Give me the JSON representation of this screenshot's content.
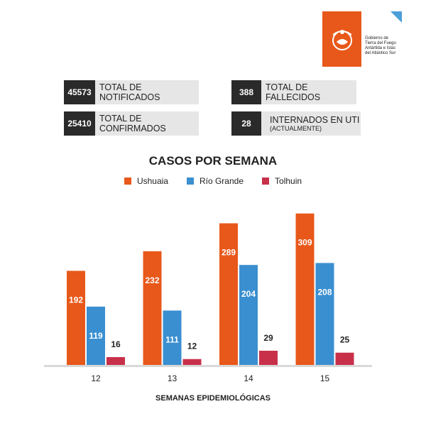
{
  "header": {
    "logo_lines": [
      "Gobierno de",
      "Tierra del Fuego",
      "Antártida e Islas",
      "del Atlántico Sur"
    ]
  },
  "stats": [
    {
      "value": "45573",
      "label": "TOTAL DE NOTIFICADOS",
      "sub": ""
    },
    {
      "value": "388",
      "label": "TOTAL DE FALLECIDOS",
      "sub": ""
    },
    {
      "value": "25410",
      "label": "TOTAL DE CONFIRMADOS",
      "sub": ""
    },
    {
      "value": "28",
      "label": "INTERNADOS EN UTI",
      "sub": "(ACTUALMENTE)"
    }
  ],
  "colors": {
    "ushuaia": "#e8581a",
    "rio_grande": "#3a8fd0",
    "tolhuin": "#c8304a",
    "accent": "#4a9fd8"
  },
  "chart_data": {
    "type": "bar",
    "title": "CASOS POR SEMANA",
    "xlabel": "SEMANAS EPIDEMIOLÓGICAS",
    "ylabel": "",
    "categories": [
      "12",
      "13",
      "14",
      "15"
    ],
    "series": [
      {
        "name": "Ushuaia",
        "values": [
          192,
          232,
          289,
          309
        ]
      },
      {
        "name": "Río Grande",
        "values": [
          119,
          111,
          204,
          208
        ]
      },
      {
        "name": "Tolhuin",
        "values": [
          16,
          12,
          29,
          25
        ]
      }
    ],
    "ylim": [
      0,
      310
    ],
    "legend": "top-center",
    "grid": false
  }
}
